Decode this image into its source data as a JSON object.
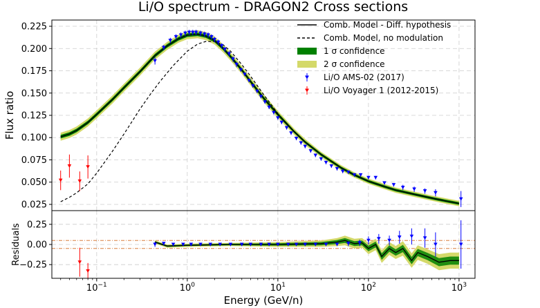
{
  "chart_data": {
    "type": "line",
    "title": "Li/O spectrum - DRAGON2 Cross sections",
    "xlabel": "Energy (GeV/n)",
    "ylabel": "Flux ratio",
    "residuals_ylabel": "Residuals",
    "xscale": "log",
    "xlim": [
      0.032,
      1500
    ],
    "ylim": [
      0.018,
      0.232
    ],
    "residuals_ylim": [
      -0.42,
      0.42
    ],
    "x_ticks": [
      {
        "value": 0.1,
        "base": "10",
        "exp": "−1"
      },
      {
        "value": 1,
        "base": "10",
        "exp": "0"
      },
      {
        "value": 10,
        "base": "10",
        "exp": "1"
      },
      {
        "value": 100,
        "base": "10",
        "exp": "2"
      },
      {
        "value": 1000,
        "base": "10",
        "exp": "3"
      }
    ],
    "y_ticks": [
      {
        "value": 0.025,
        "label": "0.025"
      },
      {
        "value": 0.05,
        "label": "0.050"
      },
      {
        "value": 0.075,
        "label": "0.075"
      },
      {
        "value": 0.1,
        "label": "0.100"
      },
      {
        "value": 0.125,
        "label": "0.125"
      },
      {
        "value": 0.15,
        "label": "0.150"
      },
      {
        "value": 0.175,
        "label": "0.175"
      },
      {
        "value": 0.2,
        "label": "0.200"
      },
      {
        "value": 0.225,
        "label": "0.225"
      }
    ],
    "residual_ticks": [
      {
        "value": 0.25,
        "label": "0.25"
      },
      {
        "value": 0.0,
        "label": "0.00"
      },
      {
        "value": -0.25,
        "label": "−0.25"
      }
    ],
    "residual_reference_lines": [
      0.05,
      -0.05
    ],
    "legend_position": "top-right",
    "legend": [
      {
        "label": "Comb. Model - Diff. hypothesis",
        "style": "solid",
        "color": "#000000"
      },
      {
        "label": "Comb. Model, no modulation",
        "style": "dashed",
        "color": "#000000"
      },
      {
        "label": "1 σ confidence",
        "style": "patch",
        "color": "#008000"
      },
      {
        "label": "2 σ confidence",
        "style": "patch",
        "color": "#d4d96a"
      },
      {
        "label": "Li/O AMS-02 (2017)",
        "style": "marker",
        "color": "#0000ff"
      },
      {
        "label": "Li/O Voyager 1 (2012-2015)",
        "style": "marker",
        "color": "#ff0000"
      }
    ],
    "colors": {
      "band1": "#008000",
      "band2": "#d4d96a",
      "ams": "#0000ff",
      "voyager": "#ff0000",
      "model": "#000000",
      "ref": "#d2691e"
    },
    "model": {
      "x": [
        0.04,
        0.05,
        0.06,
        0.08,
        0.1,
        0.15,
        0.2,
        0.3,
        0.44,
        0.6,
        0.8,
        1.0,
        1.3,
        1.6,
        2.0,
        2.5,
        3,
        4,
        5,
        7,
        10,
        15,
        20,
        30,
        50,
        70,
        100,
        150,
        200,
        300,
        500,
        700,
        1000
      ],
      "y": [
        0.101,
        0.104,
        0.108,
        0.117,
        0.126,
        0.143,
        0.156,
        0.174,
        0.192,
        0.203,
        0.211,
        0.215,
        0.216,
        0.214,
        0.209,
        0.2,
        0.191,
        0.176,
        0.163,
        0.144,
        0.126,
        0.107,
        0.095,
        0.081,
        0.066,
        0.058,
        0.051,
        0.045,
        0.041,
        0.037,
        0.032,
        0.029,
        0.026
      ]
    },
    "model_nomod": {
      "x": [
        0.04,
        0.05,
        0.06,
        0.08,
        0.1,
        0.15,
        0.2,
        0.3,
        0.4,
        0.5,
        0.7,
        1.0,
        1.3,
        1.6,
        2.0,
        2.5,
        3,
        4,
        5,
        7,
        10
      ],
      "y": [
        0.028,
        0.033,
        0.038,
        0.048,
        0.06,
        0.085,
        0.104,
        0.132,
        0.15,
        0.163,
        0.181,
        0.197,
        0.205,
        0.208,
        0.208,
        0.204,
        0.197,
        0.182,
        0.169,
        0.148,
        0.127
      ]
    },
    "band1_width": [
      0.002,
      0.002,
      0.002,
      0.002,
      0.002,
      0.002,
      0.002,
      0.002,
      0.002,
      0.002,
      0.002,
      0.002,
      0.002,
      0.002,
      0.002,
      0.002,
      0.002,
      0.002,
      0.002,
      0.002,
      0.002,
      0.0015,
      0.0015,
      0.0015,
      0.0015,
      0.0015,
      0.0015,
      0.0015,
      0.0015,
      0.0015,
      0.0015,
      0.0015,
      0.0015
    ],
    "band2_width": [
      0.0045,
      0.0045,
      0.0045,
      0.0045,
      0.0045,
      0.0045,
      0.0045,
      0.0045,
      0.0045,
      0.0045,
      0.0045,
      0.0045,
      0.0045,
      0.0045,
      0.0045,
      0.0045,
      0.0045,
      0.0045,
      0.0045,
      0.0045,
      0.004,
      0.0035,
      0.0035,
      0.003,
      0.003,
      0.003,
      0.003,
      0.003,
      0.003,
      0.003,
      0.003,
      0.003,
      0.003
    ],
    "ams": {
      "x": [
        0.44,
        0.55,
        0.65,
        0.75,
        0.85,
        0.95,
        1.05,
        1.15,
        1.25,
        1.4,
        1.55,
        1.7,
        1.85,
        2.0,
        2.2,
        2.4,
        2.6,
        2.9,
        3.2,
        3.5,
        3.9,
        4.3,
        4.8,
        5.3,
        5.9,
        6.5,
        7.2,
        8.0,
        9.0,
        10.0,
        11.0,
        12.5,
        14.0,
        16.0,
        18.0,
        20.0,
        23.0,
        26.0,
        30.0,
        34.0,
        39.0,
        45.0,
        52.0,
        60.0,
        70.0,
        82.0,
        100.0,
        120.0,
        150.0,
        190.0,
        240.0,
        320.0,
        420.0,
        550.0,
        1050.0
      ],
      "y": [
        0.186,
        0.201,
        0.209,
        0.213,
        0.215,
        0.217,
        0.218,
        0.218,
        0.218,
        0.217,
        0.216,
        0.215,
        0.213,
        0.21,
        0.207,
        0.203,
        0.199,
        0.194,
        0.188,
        0.182,
        0.176,
        0.171,
        0.164,
        0.158,
        0.152,
        0.146,
        0.14,
        0.134,
        0.128,
        0.122,
        0.117,
        0.111,
        0.105,
        0.099,
        0.094,
        0.09,
        0.085,
        0.08,
        0.076,
        0.072,
        0.068,
        0.065,
        0.062,
        0.061,
        0.058,
        0.058,
        0.055,
        0.055,
        0.049,
        0.047,
        0.044,
        0.042,
        0.04,
        0.038,
        0.031
      ],
      "yerr": [
        0.004,
        0.003,
        0.003,
        0.003,
        0.003,
        0.003,
        0.003,
        0.003,
        0.003,
        0.003,
        0.003,
        0.003,
        0.003,
        0.003,
        0.003,
        0.003,
        0.003,
        0.003,
        0.003,
        0.003,
        0.002,
        0.002,
        0.002,
        0.002,
        0.002,
        0.002,
        0.002,
        0.002,
        0.002,
        0.002,
        0.002,
        0.002,
        0.002,
        0.002,
        0.002,
        0.002,
        0.002,
        0.002,
        0.002,
        0.002,
        0.002,
        0.002,
        0.002,
        0.002,
        0.002,
        0.002,
        0.002,
        0.002,
        0.002,
        0.002,
        0.003,
        0.003,
        0.003,
        0.004,
        0.009
      ]
    },
    "voyager": {
      "x": [
        0.04,
        0.05,
        0.065,
        0.08
      ],
      "y": [
        0.052,
        0.068,
        0.051,
        0.067
      ],
      "yerr": [
        0.011,
        0.013,
        0.011,
        0.013
      ]
    },
    "residuals": {
      "model_line": {
        "x": [
          0.44,
          0.6,
          1,
          3,
          10,
          30,
          45,
          55,
          70,
          85,
          100,
          120,
          140,
          170,
          200,
          240,
          300,
          350,
          450,
          600,
          800,
          1000
        ],
        "y": [
          0.03,
          -0.02,
          -0.01,
          0.0,
          0.0,
          0.01,
          0.03,
          0.05,
          0.01,
          0.02,
          -0.05,
          0.0,
          -0.15,
          -0.05,
          -0.1,
          -0.05,
          -0.2,
          -0.1,
          -0.15,
          -0.22,
          -0.2,
          -0.2
        ]
      },
      "band_half_width": [
        0.02,
        0.02,
        0.02,
        0.02,
        0.03,
        0.04,
        0.05,
        0.06,
        0.06,
        0.06,
        0.07,
        0.07,
        0.08,
        0.08,
        0.08,
        0.09,
        0.09,
        0.09,
        0.09,
        0.1,
        0.1,
        0.1
      ],
      "ams": {
        "x": [
          0.44,
          0.55,
          0.7,
          0.9,
          1.1,
          1.4,
          1.8,
          2.3,
          3.0,
          4.0,
          5.0,
          6.5,
          8.0,
          10.0,
          13.0,
          16.0,
          20.0,
          26.0,
          34.0,
          45.0,
          60.0,
          80.0,
          100.0,
          130.0,
          170.0,
          220.0,
          300.0,
          420.0,
          550.0,
          1050.0
        ],
        "y": [
          0.0,
          0.01,
          0.0,
          0.0,
          0.0,
          0.0,
          0.0,
          0.0,
          0.0,
          0.0,
          0.0,
          0.0,
          0.0,
          0.0,
          0.0,
          0.0,
          0.0,
          0.0,
          0.0,
          0.0,
          0.01,
          0.02,
          0.05,
          0.07,
          0.05,
          0.09,
          0.1,
          0.08,
          0.0,
          0.0
        ],
        "yerr": [
          0.03,
          0.02,
          0.02,
          0.02,
          0.02,
          0.02,
          0.02,
          0.02,
          0.02,
          0.02,
          0.02,
          0.02,
          0.02,
          0.02,
          0.02,
          0.02,
          0.02,
          0.02,
          0.02,
          0.02,
          0.03,
          0.04,
          0.05,
          0.06,
          0.06,
          0.08,
          0.1,
          0.12,
          0.15,
          0.3
        ]
      },
      "voyager": {
        "x": [
          0.065,
          0.08
        ],
        "y": [
          -0.22,
          -0.33
        ],
        "yerr": [
          0.18,
          0.1
        ]
      }
    }
  }
}
